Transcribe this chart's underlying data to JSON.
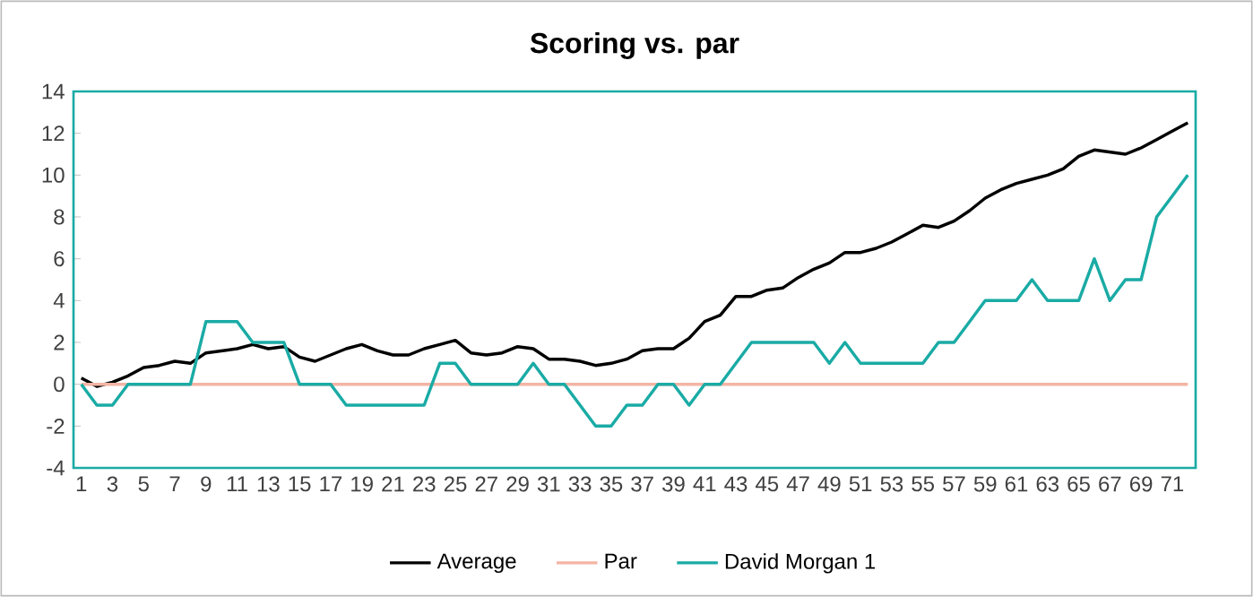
{
  "chart_data": {
    "type": "line",
    "title": "Scoring vs. par",
    "categories": [
      "1",
      null,
      "3",
      null,
      "5",
      null,
      "7",
      null,
      "9",
      null,
      "11",
      null,
      "13",
      null,
      "15",
      null,
      "17",
      null,
      "19",
      null,
      "21",
      null,
      "23",
      null,
      "25",
      null,
      "27",
      null,
      "29",
      null,
      "31",
      null,
      "33",
      null,
      "35",
      null,
      "37",
      null,
      "39",
      null,
      "41",
      null,
      "43",
      null,
      "45",
      null,
      "47",
      null,
      "49",
      null,
      "51",
      null,
      "53",
      null,
      "55",
      null,
      "57",
      null,
      "59",
      null,
      "61",
      null,
      "63",
      null,
      "65",
      null,
      "67",
      null,
      "69",
      null,
      "71",
      null
    ],
    "series": [
      {
        "name": "Average",
        "color": "#000000",
        "values": [
          0.3,
          -0.1,
          0.1,
          0.4,
          0.8,
          0.9,
          1.1,
          1.0,
          1.5,
          1.6,
          1.7,
          1.9,
          1.7,
          1.8,
          1.3,
          1.1,
          1.4,
          1.7,
          1.9,
          1.6,
          1.4,
          1.4,
          1.7,
          1.9,
          2.1,
          1.5,
          1.4,
          1.5,
          1.8,
          1.7,
          1.2,
          1.2,
          1.1,
          0.9,
          1.0,
          1.2,
          1.6,
          1.7,
          1.7,
          2.2,
          3.0,
          3.3,
          4.2,
          4.2,
          4.5,
          4.6,
          5.1,
          5.5,
          5.8,
          6.3,
          6.3,
          6.5,
          6.8,
          7.2,
          7.6,
          7.5,
          7.8,
          8.3,
          8.9,
          9.3,
          9.6,
          9.8,
          10.0,
          10.3,
          10.9,
          11.2,
          11.1,
          11.0,
          11.3,
          11.7,
          12.1,
          12.5
        ]
      },
      {
        "name": "Par",
        "color": "#f4b4a4",
        "values": [
          0,
          0,
          0,
          0,
          0,
          0,
          0,
          0,
          0,
          0,
          0,
          0,
          0,
          0,
          0,
          0,
          0,
          0,
          0,
          0,
          0,
          0,
          0,
          0,
          0,
          0,
          0,
          0,
          0,
          0,
          0,
          0,
          0,
          0,
          0,
          0,
          0,
          0,
          0,
          0,
          0,
          0,
          0,
          0,
          0,
          0,
          0,
          0,
          0,
          0,
          0,
          0,
          0,
          0,
          0,
          0,
          0,
          0,
          0,
          0,
          0,
          0,
          0,
          0,
          0,
          0,
          0,
          0,
          0,
          0,
          0,
          0
        ]
      },
      {
        "name": "David Morgan 1",
        "color": "#1aaba5",
        "values": [
          0,
          -1,
          -1,
          0,
          0,
          0,
          0,
          0,
          3,
          3,
          3,
          2,
          2,
          2,
          0,
          0,
          0,
          -1,
          -1,
          -1,
          -1,
          -1,
          -1,
          1,
          1,
          0,
          0,
          0,
          0,
          1,
          0,
          0,
          -1,
          -2,
          -2,
          -1,
          -1,
          0,
          0,
          -1,
          0,
          0,
          1,
          2,
          2,
          2,
          2,
          2,
          1,
          2,
          1,
          1,
          1,
          1,
          1,
          2,
          2,
          3,
          4,
          4,
          4,
          5,
          4,
          4,
          4,
          6,
          4,
          5,
          5,
          8,
          9,
          10
        ]
      }
    ],
    "ylim": [
      -4,
      14
    ],
    "yticks": [
      -4,
      -2,
      0,
      2,
      4,
      6,
      8,
      10,
      12,
      14
    ],
    "grid": false,
    "legend": "bottom"
  }
}
